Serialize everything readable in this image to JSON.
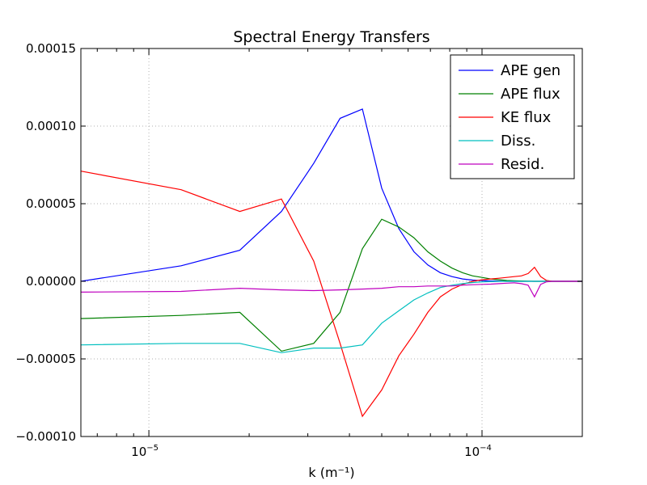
{
  "chart_data": {
    "type": "line",
    "title": "Spectral Energy Transfers",
    "xlabel": "k (m⁻¹)",
    "ylabel": "",
    "xscale": "log",
    "xlim": [
      6.25e-06,
      0.0002
    ],
    "ylim": [
      -0.0001,
      0.00015
    ],
    "grid": true,
    "legend_position": "top-right",
    "x_ticks": [
      {
        "value": 1e-05,
        "label": "10",
        "exponent": "−5"
      },
      {
        "value": 0.0001,
        "label": "10",
        "exponent": "−4"
      }
    ],
    "y_ticks": [
      {
        "value": -0.0001,
        "label": "−0.00010"
      },
      {
        "value": -5e-05,
        "label": "−0.00005"
      },
      {
        "value": 0.0,
        "label": "0.00000"
      },
      {
        "value": 5e-05,
        "label": "0.00005"
      },
      {
        "value": 0.0001,
        "label": "0.00010"
      },
      {
        "value": 0.00015,
        "label": "0.00015"
      }
    ],
    "x": [
      6.25e-06,
      1.25e-05,
      1.875e-05,
      2.5e-05,
      3.125e-05,
      3.75e-05,
      4.375e-05,
      5e-05,
      5.625e-05,
      6.25e-05,
      6.875e-05,
      7.5e-05,
      8.125e-05,
      8.75e-05,
      9.375e-05,
      0.0001,
      0.00010625,
      0.0001125,
      0.00011875,
      0.000125,
      0.00013125,
      0.0001375,
      0.00014375,
      0.00015,
      0.00015625,
      0.0001625,
      0.00016875,
      0.000175,
      0.00018125,
      0.0001875,
      0.00019375,
      0.0002
    ],
    "series": [
      {
        "name": "APE gen",
        "color": "#0000ff",
        "values": [
          0.0,
          1e-05,
          2e-05,
          4.5e-05,
          7.6e-05,
          0.000105,
          0.000111,
          6e-05,
          3.4e-05,
          1.9e-05,
          1.05e-05,
          5.5e-06,
          3e-06,
          1.5e-06,
          8e-07,
          4e-07,
          2e-07,
          1e-07,
          0.0,
          0.0,
          0.0,
          0.0,
          0.0,
          0.0,
          0.0,
          0.0,
          0.0,
          0.0,
          0.0,
          0.0,
          0.0,
          0.0
        ]
      },
      {
        "name": "APE flux",
        "color": "#008000",
        "values": [
          -2.4e-05,
          -2.2e-05,
          -2e-05,
          -4.5e-05,
          -4e-05,
          -2e-05,
          2.1e-05,
          4e-05,
          3.5e-05,
          2.8e-05,
          1.9e-05,
          1.3e-05,
          8.5e-06,
          5.5e-06,
          3.5e-06,
          2.5e-06,
          1.5e-06,
          1e-06,
          5e-07,
          3e-07,
          2e-07,
          1e-07,
          0.0,
          0.0,
          0.0,
          0.0,
          0.0,
          0.0,
          0.0,
          0.0,
          0.0,
          0.0
        ]
      },
      {
        "name": "KE flux",
        "color": "#ff0000",
        "values": [
          7.1e-05,
          5.9e-05,
          4.5e-05,
          5.3e-05,
          1.3e-05,
          -4e-05,
          -8.7e-05,
          -7e-05,
          -4.8e-05,
          -3.4e-05,
          -2e-05,
          -1e-05,
          -5e-06,
          -2e-06,
          0.0,
          1e-06,
          1.5e-06,
          2e-06,
          2.5e-06,
          3e-06,
          3.5e-06,
          5e-06,
          9e-06,
          3e-06,
          5e-07,
          0.0,
          0.0,
          0.0,
          0.0,
          0.0,
          0.0,
          0.0
        ]
      },
      {
        "name": "Diss.",
        "color": "#00bfbf",
        "values": [
          -4.1e-05,
          -4e-05,
          -4e-05,
          -4.6e-05,
          -4.3e-05,
          -4.3e-05,
          -4.1e-05,
          -2.7e-05,
          -1.9e-05,
          -1.2e-05,
          -7.5e-06,
          -4e-06,
          -2.5e-06,
          -1.5e-06,
          -8e-07,
          -4e-07,
          -2e-07,
          -1e-07,
          0.0,
          0.0,
          0.0,
          0.0,
          0.0,
          0.0,
          0.0,
          0.0,
          0.0,
          0.0,
          0.0,
          0.0,
          0.0,
          0.0
        ]
      },
      {
        "name": "Resid.",
        "color": "#bf00bf",
        "values": [
          -7e-06,
          -6.5e-06,
          -4.5e-06,
          -5.5e-06,
          -6e-06,
          -5.5e-06,
          -5e-06,
          -4.5e-06,
          -3.5e-06,
          -3.5e-06,
          -3e-06,
          -3e-06,
          -3e-06,
          -2.5e-06,
          -2.2e-06,
          -2e-06,
          -1.8e-06,
          -1.5e-06,
          -1.2e-06,
          -1e-06,
          -1.5e-06,
          -2.5e-06,
          -1e-05,
          -2e-06,
          -3e-07,
          0.0,
          0.0,
          0.0,
          0.0,
          0.0,
          0.0,
          0.0
        ]
      }
    ]
  }
}
